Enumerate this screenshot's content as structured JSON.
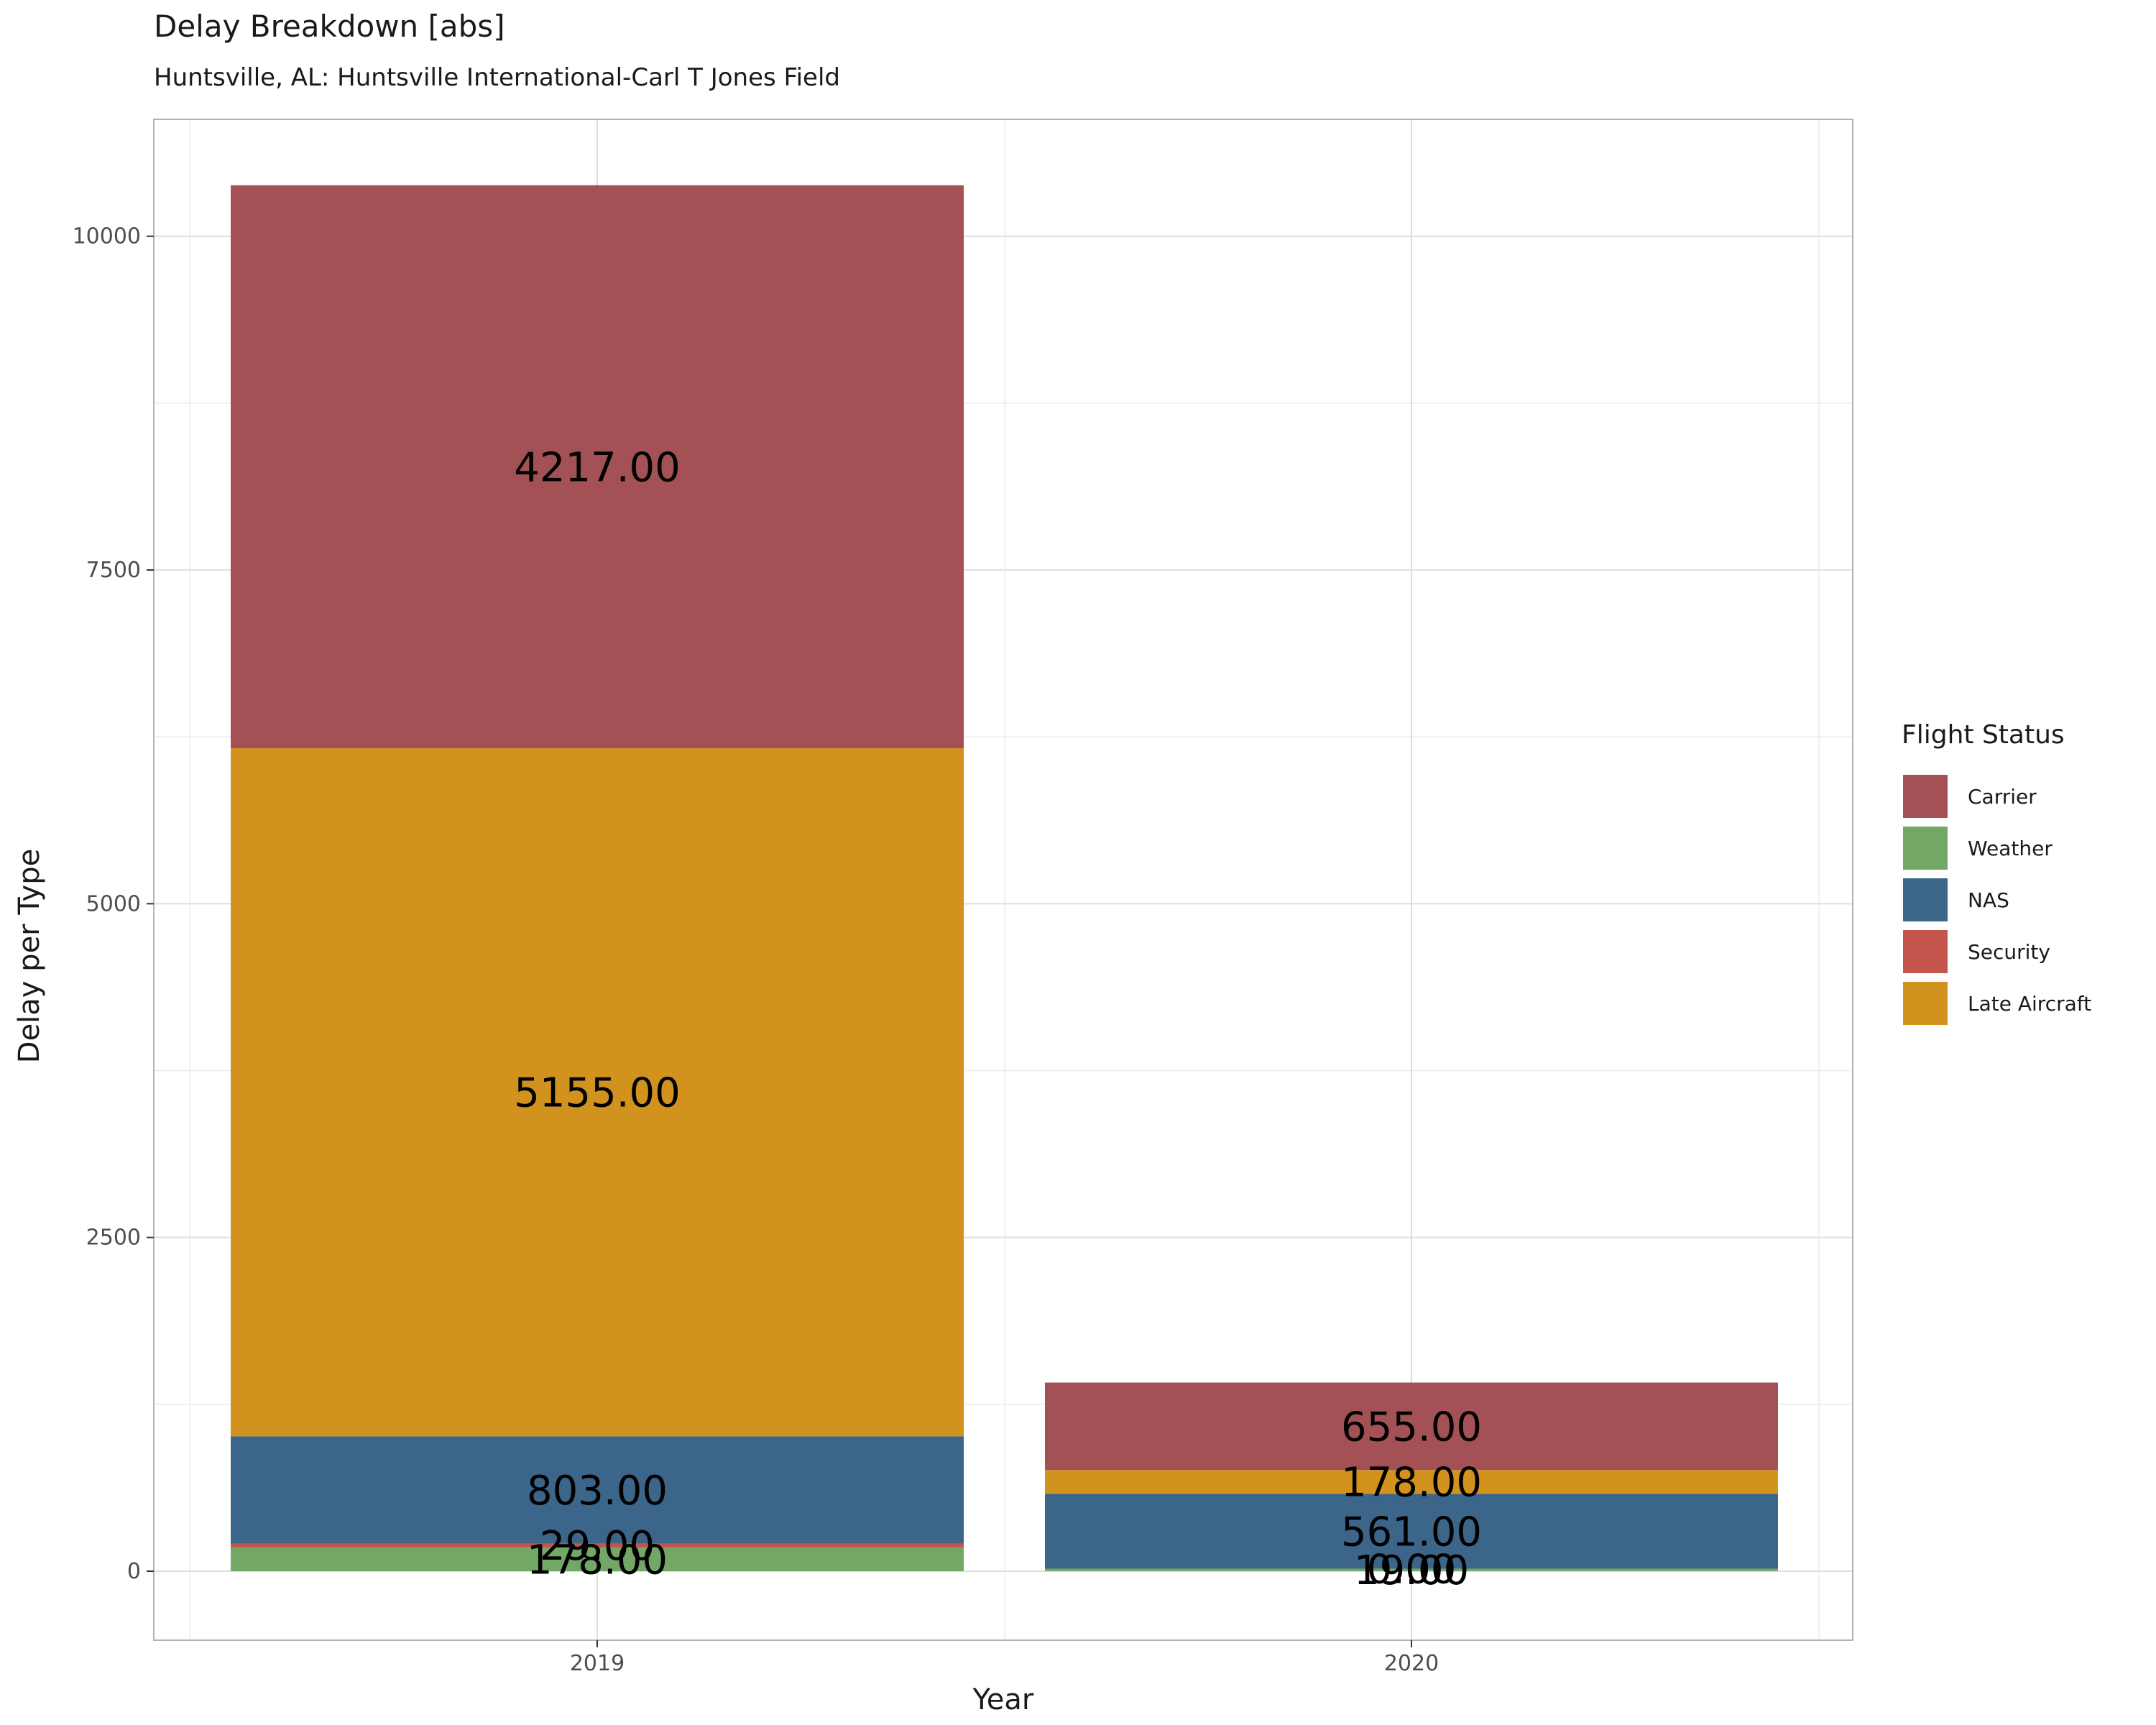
{
  "header": {
    "title": "Delay Breakdown [abs]",
    "subtitle": "Huntsville, AL: Huntsville International-Carl T Jones Field"
  },
  "legend": {
    "title": "Flight Status",
    "items": [
      {
        "label": "Carrier",
        "color": "#A35155"
      },
      {
        "label": "Weather",
        "color": "#73A765"
      },
      {
        "label": "NAS",
        "color": "#3B6589"
      },
      {
        "label": "Security",
        "color": "#C4554D"
      },
      {
        "label": "Late Aircraft",
        "color": "#D1931E"
      }
    ]
  },
  "chart_data": {
    "type": "bar",
    "stacked": true,
    "xlabel": "Year",
    "ylabel": "Delay per Type",
    "categories": [
      "2019",
      "2020"
    ],
    "ylim": [
      -1000,
      10800
    ],
    "yticks": [
      0,
      2500,
      5000,
      7500,
      10000
    ],
    "grid": true,
    "legend_position": "right",
    "stack_order_bottom_to_top": [
      "Weather",
      "Security",
      "NAS",
      "Late Aircraft",
      "Carrier"
    ],
    "series": [
      {
        "name": "Carrier",
        "color": "#A35155",
        "values": [
          4217,
          655
        ]
      },
      {
        "name": "Weather",
        "color": "#73A765",
        "values": [
          178,
          19
        ]
      },
      {
        "name": "NAS",
        "color": "#3B6589",
        "values": [
          803,
          561
        ]
      },
      {
        "name": "Security",
        "color": "#C4554D",
        "values": [
          29,
          0
        ]
      },
      {
        "name": "Late Aircraft",
        "color": "#D1931E",
        "values": [
          5155,
          178
        ]
      }
    ],
    "data_labels": [
      [
        "4217.00",
        "655.00"
      ],
      [
        "178.00",
        "19.00"
      ],
      [
        "803.00",
        "561.00"
      ],
      [
        "29.00",
        "0.00"
      ],
      [
        "5155.00",
        "178.00"
      ]
    ]
  }
}
